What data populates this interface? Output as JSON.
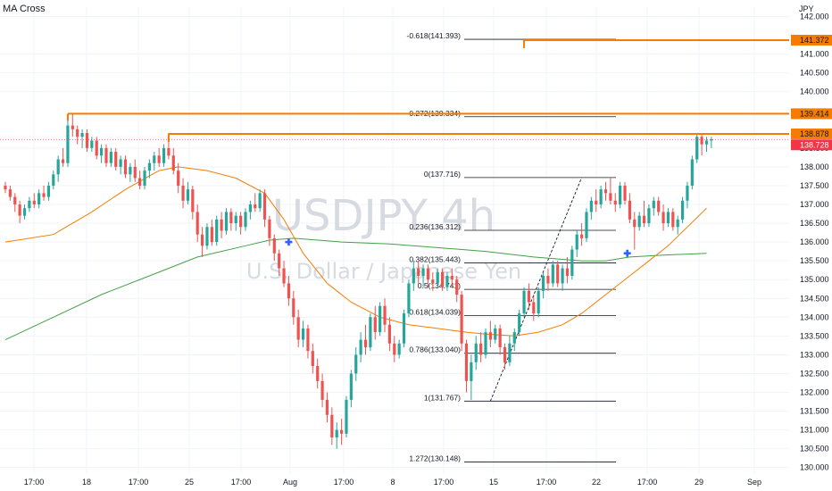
{
  "indicator": "MA Cross",
  "currency": "JPY",
  "chart_data": {
    "type": "candlestick",
    "symbol": "USDJPY",
    "timeframe": "4h",
    "watermark_subtitle": "U.S. Dollar / Japanese Yen",
    "ylim": [
      129.85,
      142.25
    ],
    "y_ticks": [
      130.0,
      130.5,
      131.0,
      131.5,
      132.0,
      132.5,
      133.0,
      133.5,
      134.0,
      134.5,
      135.0,
      135.5,
      136.0,
      136.5,
      137.0,
      137.5,
      138.0,
      138.5,
      140.0,
      140.5,
      141.0,
      142.0
    ],
    "x_ticks": [
      "17:00",
      "18",
      "17:00",
      "25",
      "17:00",
      "Aug",
      "17:00",
      "8",
      "17:00",
      "15",
      "17:00",
      "22",
      "17:00",
      "29",
      "Sep"
    ],
    "candles": [
      {
        "o": 137.5,
        "h": 137.6,
        "l": 137.3,
        "c": 137.4
      },
      {
        "o": 137.4,
        "h": 137.5,
        "l": 137.1,
        "c": 137.2
      },
      {
        "o": 137.2,
        "h": 137.3,
        "l": 136.8,
        "c": 137.0
      },
      {
        "o": 137.0,
        "h": 137.1,
        "l": 136.5,
        "c": 136.7
      },
      {
        "o": 136.7,
        "h": 137.0,
        "l": 136.6,
        "c": 136.9
      },
      {
        "o": 136.9,
        "h": 137.2,
        "l": 136.8,
        "c": 137.1
      },
      {
        "o": 137.1,
        "h": 137.3,
        "l": 136.9,
        "c": 137.0
      },
      {
        "o": 137.0,
        "h": 137.4,
        "l": 136.9,
        "c": 137.3
      },
      {
        "o": 137.3,
        "h": 137.5,
        "l": 137.1,
        "c": 137.2
      },
      {
        "o": 137.2,
        "h": 137.6,
        "l": 137.1,
        "c": 137.5
      },
      {
        "o": 137.5,
        "h": 137.9,
        "l": 137.4,
        "c": 137.8
      },
      {
        "o": 137.8,
        "h": 138.3,
        "l": 137.6,
        "c": 138.2
      },
      {
        "o": 138.2,
        "h": 138.5,
        "l": 138.0,
        "c": 138.1
      },
      {
        "o": 138.1,
        "h": 139.3,
        "l": 138.0,
        "c": 139.1
      },
      {
        "o": 139.1,
        "h": 139.4,
        "l": 138.8,
        "c": 139.0
      },
      {
        "o": 139.0,
        "h": 139.1,
        "l": 138.6,
        "c": 138.8
      },
      {
        "o": 138.8,
        "h": 139.0,
        "l": 138.5,
        "c": 138.9
      },
      {
        "o": 138.9,
        "h": 139.0,
        "l": 138.4,
        "c": 138.5
      },
      {
        "o": 138.5,
        "h": 138.8,
        "l": 138.4,
        "c": 138.7
      },
      {
        "o": 138.7,
        "h": 138.8,
        "l": 138.2,
        "c": 138.3
      },
      {
        "o": 138.3,
        "h": 138.6,
        "l": 138.1,
        "c": 138.5
      },
      {
        "o": 138.5,
        "h": 138.6,
        "l": 138.0,
        "c": 138.1
      },
      {
        "o": 138.1,
        "h": 138.5,
        "l": 138.0,
        "c": 138.4
      },
      {
        "o": 138.4,
        "h": 138.5,
        "l": 137.9,
        "c": 138.0
      },
      {
        "o": 138.0,
        "h": 138.3,
        "l": 137.8,
        "c": 138.2
      },
      {
        "o": 138.2,
        "h": 138.3,
        "l": 137.7,
        "c": 137.8
      },
      {
        "o": 137.8,
        "h": 138.1,
        "l": 137.6,
        "c": 138.0
      },
      {
        "o": 138.0,
        "h": 138.2,
        "l": 137.6,
        "c": 137.7
      },
      {
        "o": 137.7,
        "h": 137.9,
        "l": 137.4,
        "c": 137.5
      },
      {
        "o": 137.5,
        "h": 138.0,
        "l": 137.4,
        "c": 137.9
      },
      {
        "o": 137.9,
        "h": 138.2,
        "l": 137.7,
        "c": 138.1
      },
      {
        "o": 138.1,
        "h": 138.4,
        "l": 137.9,
        "c": 138.3
      },
      {
        "o": 138.3,
        "h": 138.5,
        "l": 138.0,
        "c": 138.1
      },
      {
        "o": 138.1,
        "h": 138.6,
        "l": 138.0,
        "c": 138.5
      },
      {
        "o": 138.5,
        "h": 138.9,
        "l": 138.2,
        "c": 138.3
      },
      {
        "o": 138.3,
        "h": 138.5,
        "l": 137.8,
        "c": 137.9
      },
      {
        "o": 137.9,
        "h": 138.1,
        "l": 137.3,
        "c": 137.5
      },
      {
        "o": 137.5,
        "h": 137.7,
        "l": 136.9,
        "c": 137.1
      },
      {
        "o": 137.1,
        "h": 137.6,
        "l": 137.0,
        "c": 137.4
      },
      {
        "o": 137.4,
        "h": 137.5,
        "l": 136.6,
        "c": 136.8
      },
      {
        "o": 136.8,
        "h": 137.0,
        "l": 136.0,
        "c": 136.2
      },
      {
        "o": 136.2,
        "h": 136.4,
        "l": 135.6,
        "c": 135.9
      },
      {
        "o": 135.9,
        "h": 136.5,
        "l": 135.8,
        "c": 136.4
      },
      {
        "o": 136.4,
        "h": 136.6,
        "l": 135.9,
        "c": 136.0
      },
      {
        "o": 136.0,
        "h": 136.7,
        "l": 135.9,
        "c": 136.6
      },
      {
        "o": 136.6,
        "h": 136.8,
        "l": 136.1,
        "c": 136.3
      },
      {
        "o": 136.3,
        "h": 136.9,
        "l": 136.2,
        "c": 136.8
      },
      {
        "o": 136.8,
        "h": 136.9,
        "l": 136.3,
        "c": 136.5
      },
      {
        "o": 136.5,
        "h": 136.8,
        "l": 136.3,
        "c": 136.7
      },
      {
        "o": 136.7,
        "h": 136.8,
        "l": 136.2,
        "c": 136.4
      },
      {
        "o": 136.4,
        "h": 136.9,
        "l": 136.3,
        "c": 136.8
      },
      {
        "o": 136.8,
        "h": 137.1,
        "l": 136.6,
        "c": 137.0
      },
      {
        "o": 137.0,
        "h": 137.3,
        "l": 136.8,
        "c": 136.9
      },
      {
        "o": 136.9,
        "h": 137.4,
        "l": 136.8,
        "c": 137.3
      },
      {
        "o": 137.3,
        "h": 137.4,
        "l": 136.4,
        "c": 136.6
      },
      {
        "o": 136.6,
        "h": 136.7,
        "l": 135.9,
        "c": 136.1
      },
      {
        "o": 136.1,
        "h": 136.2,
        "l": 135.5,
        "c": 135.7
      },
      {
        "o": 135.7,
        "h": 135.8,
        "l": 135.1,
        "c": 135.3
      },
      {
        "o": 135.3,
        "h": 135.5,
        "l": 134.8,
        "c": 134.9
      },
      {
        "o": 134.9,
        "h": 135.1,
        "l": 134.3,
        "c": 134.5
      },
      {
        "o": 134.5,
        "h": 134.7,
        "l": 133.8,
        "c": 134.0
      },
      {
        "o": 134.0,
        "h": 134.2,
        "l": 133.2,
        "c": 133.4
      },
      {
        "o": 133.4,
        "h": 133.9,
        "l": 133.2,
        "c": 133.7
      },
      {
        "o": 133.7,
        "h": 133.8,
        "l": 132.9,
        "c": 133.1
      },
      {
        "o": 133.1,
        "h": 133.3,
        "l": 132.5,
        "c": 132.7
      },
      {
        "o": 132.7,
        "h": 132.9,
        "l": 132.1,
        "c": 132.3
      },
      {
        "o": 132.3,
        "h": 132.5,
        "l": 131.6,
        "c": 131.8
      },
      {
        "o": 131.8,
        "h": 132.0,
        "l": 131.2,
        "c": 131.4
      },
      {
        "o": 131.4,
        "h": 131.6,
        "l": 130.6,
        "c": 130.8
      },
      {
        "o": 130.8,
        "h": 131.2,
        "l": 130.5,
        "c": 131.0
      },
      {
        "o": 131.0,
        "h": 131.3,
        "l": 130.6,
        "c": 130.9
      },
      {
        "o": 130.9,
        "h": 131.9,
        "l": 130.8,
        "c": 131.8
      },
      {
        "o": 131.8,
        "h": 132.6,
        "l": 131.6,
        "c": 132.5
      },
      {
        "o": 132.5,
        "h": 133.2,
        "l": 132.3,
        "c": 133.0
      },
      {
        "o": 133.0,
        "h": 133.6,
        "l": 132.8,
        "c": 133.4
      },
      {
        "o": 133.4,
        "h": 133.8,
        "l": 133.0,
        "c": 133.2
      },
      {
        "o": 133.2,
        "h": 134.1,
        "l": 133.1,
        "c": 134.0
      },
      {
        "o": 134.0,
        "h": 134.3,
        "l": 133.4,
        "c": 133.6
      },
      {
        "o": 133.6,
        "h": 134.4,
        "l": 133.5,
        "c": 134.3
      },
      {
        "o": 134.3,
        "h": 134.5,
        "l": 133.6,
        "c": 133.8
      },
      {
        "o": 133.8,
        "h": 134.0,
        "l": 133.1,
        "c": 133.3
      },
      {
        "o": 133.3,
        "h": 133.5,
        "l": 132.8,
        "c": 133.0
      },
      {
        "o": 133.0,
        "h": 133.4,
        "l": 132.9,
        "c": 133.3
      },
      {
        "o": 133.3,
        "h": 134.2,
        "l": 133.2,
        "c": 134.1
      },
      {
        "o": 134.1,
        "h": 135.0,
        "l": 134.0,
        "c": 134.9
      },
      {
        "o": 134.9,
        "h": 135.5,
        "l": 134.7,
        "c": 135.3
      },
      {
        "o": 135.3,
        "h": 135.5,
        "l": 134.9,
        "c": 135.1
      },
      {
        "o": 135.1,
        "h": 135.4,
        "l": 134.8,
        "c": 135.3
      },
      {
        "o": 135.3,
        "h": 135.4,
        "l": 134.8,
        "c": 135.0
      },
      {
        "o": 135.0,
        "h": 135.2,
        "l": 134.7,
        "c": 134.9
      },
      {
        "o": 134.9,
        "h": 135.3,
        "l": 134.8,
        "c": 135.2
      },
      {
        "o": 135.2,
        "h": 135.3,
        "l": 134.7,
        "c": 134.8
      },
      {
        "o": 134.8,
        "h": 135.2,
        "l": 134.7,
        "c": 135.1
      },
      {
        "o": 135.1,
        "h": 135.3,
        "l": 134.8,
        "c": 135.0
      },
      {
        "o": 135.0,
        "h": 135.1,
        "l": 134.4,
        "c": 134.6
      },
      {
        "o": 134.6,
        "h": 134.7,
        "l": 133.1,
        "c": 133.3
      },
      {
        "o": 133.3,
        "h": 133.4,
        "l": 132.0,
        "c": 132.3
      },
      {
        "o": 132.3,
        "h": 133.0,
        "l": 131.8,
        "c": 132.8
      },
      {
        "o": 132.8,
        "h": 133.5,
        "l": 132.6,
        "c": 133.3
      },
      {
        "o": 133.3,
        "h": 133.6,
        "l": 132.8,
        "c": 133.0
      },
      {
        "o": 133.0,
        "h": 133.7,
        "l": 132.9,
        "c": 133.6
      },
      {
        "o": 133.6,
        "h": 133.9,
        "l": 133.2,
        "c": 133.4
      },
      {
        "o": 133.4,
        "h": 133.8,
        "l": 133.3,
        "c": 133.7
      },
      {
        "o": 133.7,
        "h": 133.8,
        "l": 133.0,
        "c": 133.2
      },
      {
        "o": 133.2,
        "h": 133.3,
        "l": 132.6,
        "c": 132.8
      },
      {
        "o": 132.8,
        "h": 133.5,
        "l": 132.7,
        "c": 133.3
      },
      {
        "o": 133.3,
        "h": 133.7,
        "l": 133.1,
        "c": 133.6
      },
      {
        "o": 133.6,
        "h": 134.2,
        "l": 133.5,
        "c": 134.1
      },
      {
        "o": 134.1,
        "h": 134.8,
        "l": 134.0,
        "c": 134.7
      },
      {
        "o": 134.7,
        "h": 134.9,
        "l": 134.2,
        "c": 134.4
      },
      {
        "o": 134.4,
        "h": 134.6,
        "l": 133.9,
        "c": 134.1
      },
      {
        "o": 134.1,
        "h": 134.8,
        "l": 134.0,
        "c": 134.7
      },
      {
        "o": 134.7,
        "h": 135.2,
        "l": 134.5,
        "c": 135.1
      },
      {
        "o": 135.1,
        "h": 135.3,
        "l": 134.7,
        "c": 134.9
      },
      {
        "o": 134.9,
        "h": 135.5,
        "l": 134.8,
        "c": 135.4
      },
      {
        "o": 135.4,
        "h": 135.5,
        "l": 134.8,
        "c": 134.9
      },
      {
        "o": 134.9,
        "h": 135.4,
        "l": 134.7,
        "c": 135.3
      },
      {
        "o": 135.3,
        "h": 135.6,
        "l": 134.9,
        "c": 135.1
      },
      {
        "o": 135.1,
        "h": 135.9,
        "l": 135.0,
        "c": 135.8
      },
      {
        "o": 135.8,
        "h": 136.3,
        "l": 135.6,
        "c": 136.2
      },
      {
        "o": 136.2,
        "h": 136.5,
        "l": 135.9,
        "c": 136.1
      },
      {
        "o": 136.1,
        "h": 136.9,
        "l": 136.0,
        "c": 136.8
      },
      {
        "o": 136.8,
        "h": 137.2,
        "l": 136.6,
        "c": 137.1
      },
      {
        "o": 137.1,
        "h": 137.4,
        "l": 136.8,
        "c": 137.0
      },
      {
        "o": 137.0,
        "h": 137.5,
        "l": 136.9,
        "c": 137.4
      },
      {
        "o": 137.4,
        "h": 137.6,
        "l": 137.1,
        "c": 137.3
      },
      {
        "o": 137.3,
        "h": 137.7,
        "l": 137.0,
        "c": 137.1
      },
      {
        "o": 137.1,
        "h": 137.3,
        "l": 136.8,
        "c": 137.0
      },
      {
        "o": 137.0,
        "h": 137.6,
        "l": 136.9,
        "c": 137.5
      },
      {
        "o": 137.5,
        "h": 137.6,
        "l": 137.0,
        "c": 137.1
      },
      {
        "o": 137.1,
        "h": 137.3,
        "l": 136.5,
        "c": 136.6
      },
      {
        "o": 136.6,
        "h": 136.8,
        "l": 135.8,
        "c": 136.4
      },
      {
        "o": 136.4,
        "h": 136.8,
        "l": 136.3,
        "c": 136.7
      },
      {
        "o": 136.7,
        "h": 137.1,
        "l": 136.4,
        "c": 136.5
      },
      {
        "o": 136.5,
        "h": 137.0,
        "l": 136.4,
        "c": 136.9
      },
      {
        "o": 136.9,
        "h": 137.2,
        "l": 136.7,
        "c": 137.1
      },
      {
        "o": 137.1,
        "h": 137.2,
        "l": 136.7,
        "c": 136.8
      },
      {
        "o": 136.8,
        "h": 137.0,
        "l": 136.3,
        "c": 136.5
      },
      {
        "o": 136.5,
        "h": 136.9,
        "l": 136.4,
        "c": 136.8
      },
      {
        "o": 136.8,
        "h": 136.9,
        "l": 136.3,
        "c": 136.4
      },
      {
        "o": 136.4,
        "h": 136.7,
        "l": 136.2,
        "c": 136.6
      },
      {
        "o": 136.6,
        "h": 137.2,
        "l": 136.5,
        "c": 137.1
      },
      {
        "o": 137.1,
        "h": 137.6,
        "l": 136.9,
        "c": 137.5
      },
      {
        "o": 137.5,
        "h": 138.3,
        "l": 137.4,
        "c": 138.2
      },
      {
        "o": 138.2,
        "h": 138.9,
        "l": 138.1,
        "c": 138.8
      },
      {
        "o": 138.8,
        "h": 138.85,
        "l": 138.3,
        "c": 138.6
      },
      {
        "o": 138.6,
        "h": 138.8,
        "l": 138.4,
        "c": 138.7
      },
      {
        "o": 138.7,
        "h": 138.8,
        "l": 138.5,
        "c": 138.73
      }
    ],
    "ma_fast": {
      "color": "#f57c00",
      "points": [
        [
          0,
          136.0
        ],
        [
          10,
          136.2
        ],
        [
          18,
          136.8
        ],
        [
          25,
          137.4
        ],
        [
          32,
          137.9
        ],
        [
          36,
          138.0
        ],
        [
          42,
          137.9
        ],
        [
          48,
          137.7
        ],
        [
          54,
          137.3
        ],
        [
          58,
          136.6
        ],
        [
          62,
          135.7
        ],
        [
          67,
          134.9
        ],
        [
          72,
          134.4
        ],
        [
          78,
          134.0
        ],
        [
          84,
          133.8
        ],
        [
          90,
          133.7
        ],
        [
          96,
          133.6
        ],
        [
          100,
          133.55
        ],
        [
          106,
          133.5
        ],
        [
          111,
          133.6
        ],
        [
          116,
          133.8
        ],
        [
          120,
          134.1
        ],
        [
          125,
          134.6
        ],
        [
          130,
          135.1
        ],
        [
          134,
          135.5
        ],
        [
          138,
          135.9
        ],
        [
          142,
          136.4
        ],
        [
          146,
          136.9
        ]
      ]
    },
    "ma_slow": {
      "color": "#43a047",
      "points": [
        [
          0,
          133.4
        ],
        [
          10,
          134.0
        ],
        [
          20,
          134.6
        ],
        [
          30,
          135.1
        ],
        [
          40,
          135.6
        ],
        [
          50,
          135.9
        ],
        [
          55,
          136.05
        ],
        [
          60,
          136.1
        ],
        [
          70,
          136.0
        ],
        [
          80,
          135.95
        ],
        [
          90,
          135.85
        ],
        [
          100,
          135.75
        ],
        [
          110,
          135.6
        ],
        [
          120,
          135.5
        ],
        [
          125,
          135.5
        ],
        [
          130,
          135.6
        ],
        [
          137,
          135.65
        ],
        [
          146,
          135.7
        ]
      ]
    },
    "cross_markers": [
      {
        "index": 59,
        "price": 136.0
      },
      {
        "index": 129.5,
        "price": 135.7
      }
    ],
    "fib_levels": [
      {
        "label": "-0.618(141.393)",
        "price": 141.393
      },
      {
        "label": "-0.272(139.334)",
        "price": 139.334
      },
      {
        "label": "0(137.716)",
        "price": 137.716
      },
      {
        "label": "0.236(136.312)",
        "price": 136.312
      },
      {
        "label": "0.382(135.443)",
        "price": 135.443
      },
      {
        "label": "0.5(134.741)",
        "price": 134.741
      },
      {
        "label": "0.618(134.039)",
        "price": 134.039
      },
      {
        "label": "0.786(133.040)",
        "price": 133.04
      },
      {
        "label": "1(131.767)",
        "price": 131.767
      },
      {
        "label": "1.272(130.148)",
        "price": 130.148
      }
    ],
    "fib_trend": {
      "from": {
        "index": 101,
        "price": 131.767
      },
      "to": {
        "index": 120,
        "price": 137.716
      }
    },
    "resistance_lines": [
      {
        "price": 141.372,
        "from_index": 108,
        "label": "141.372"
      },
      {
        "price": 139.414,
        "from_index": 13,
        "label": "139.414"
      },
      {
        "price": 138.878,
        "from_index": 34,
        "label": "138.878"
      }
    ],
    "current_price": {
      "price": 138.728,
      "label": "138.728"
    },
    "colors": {
      "up": "#26a69a",
      "down": "#ef5350",
      "level": "#f57c00",
      "fib": "#131722",
      "last": "#f23645"
    }
  }
}
